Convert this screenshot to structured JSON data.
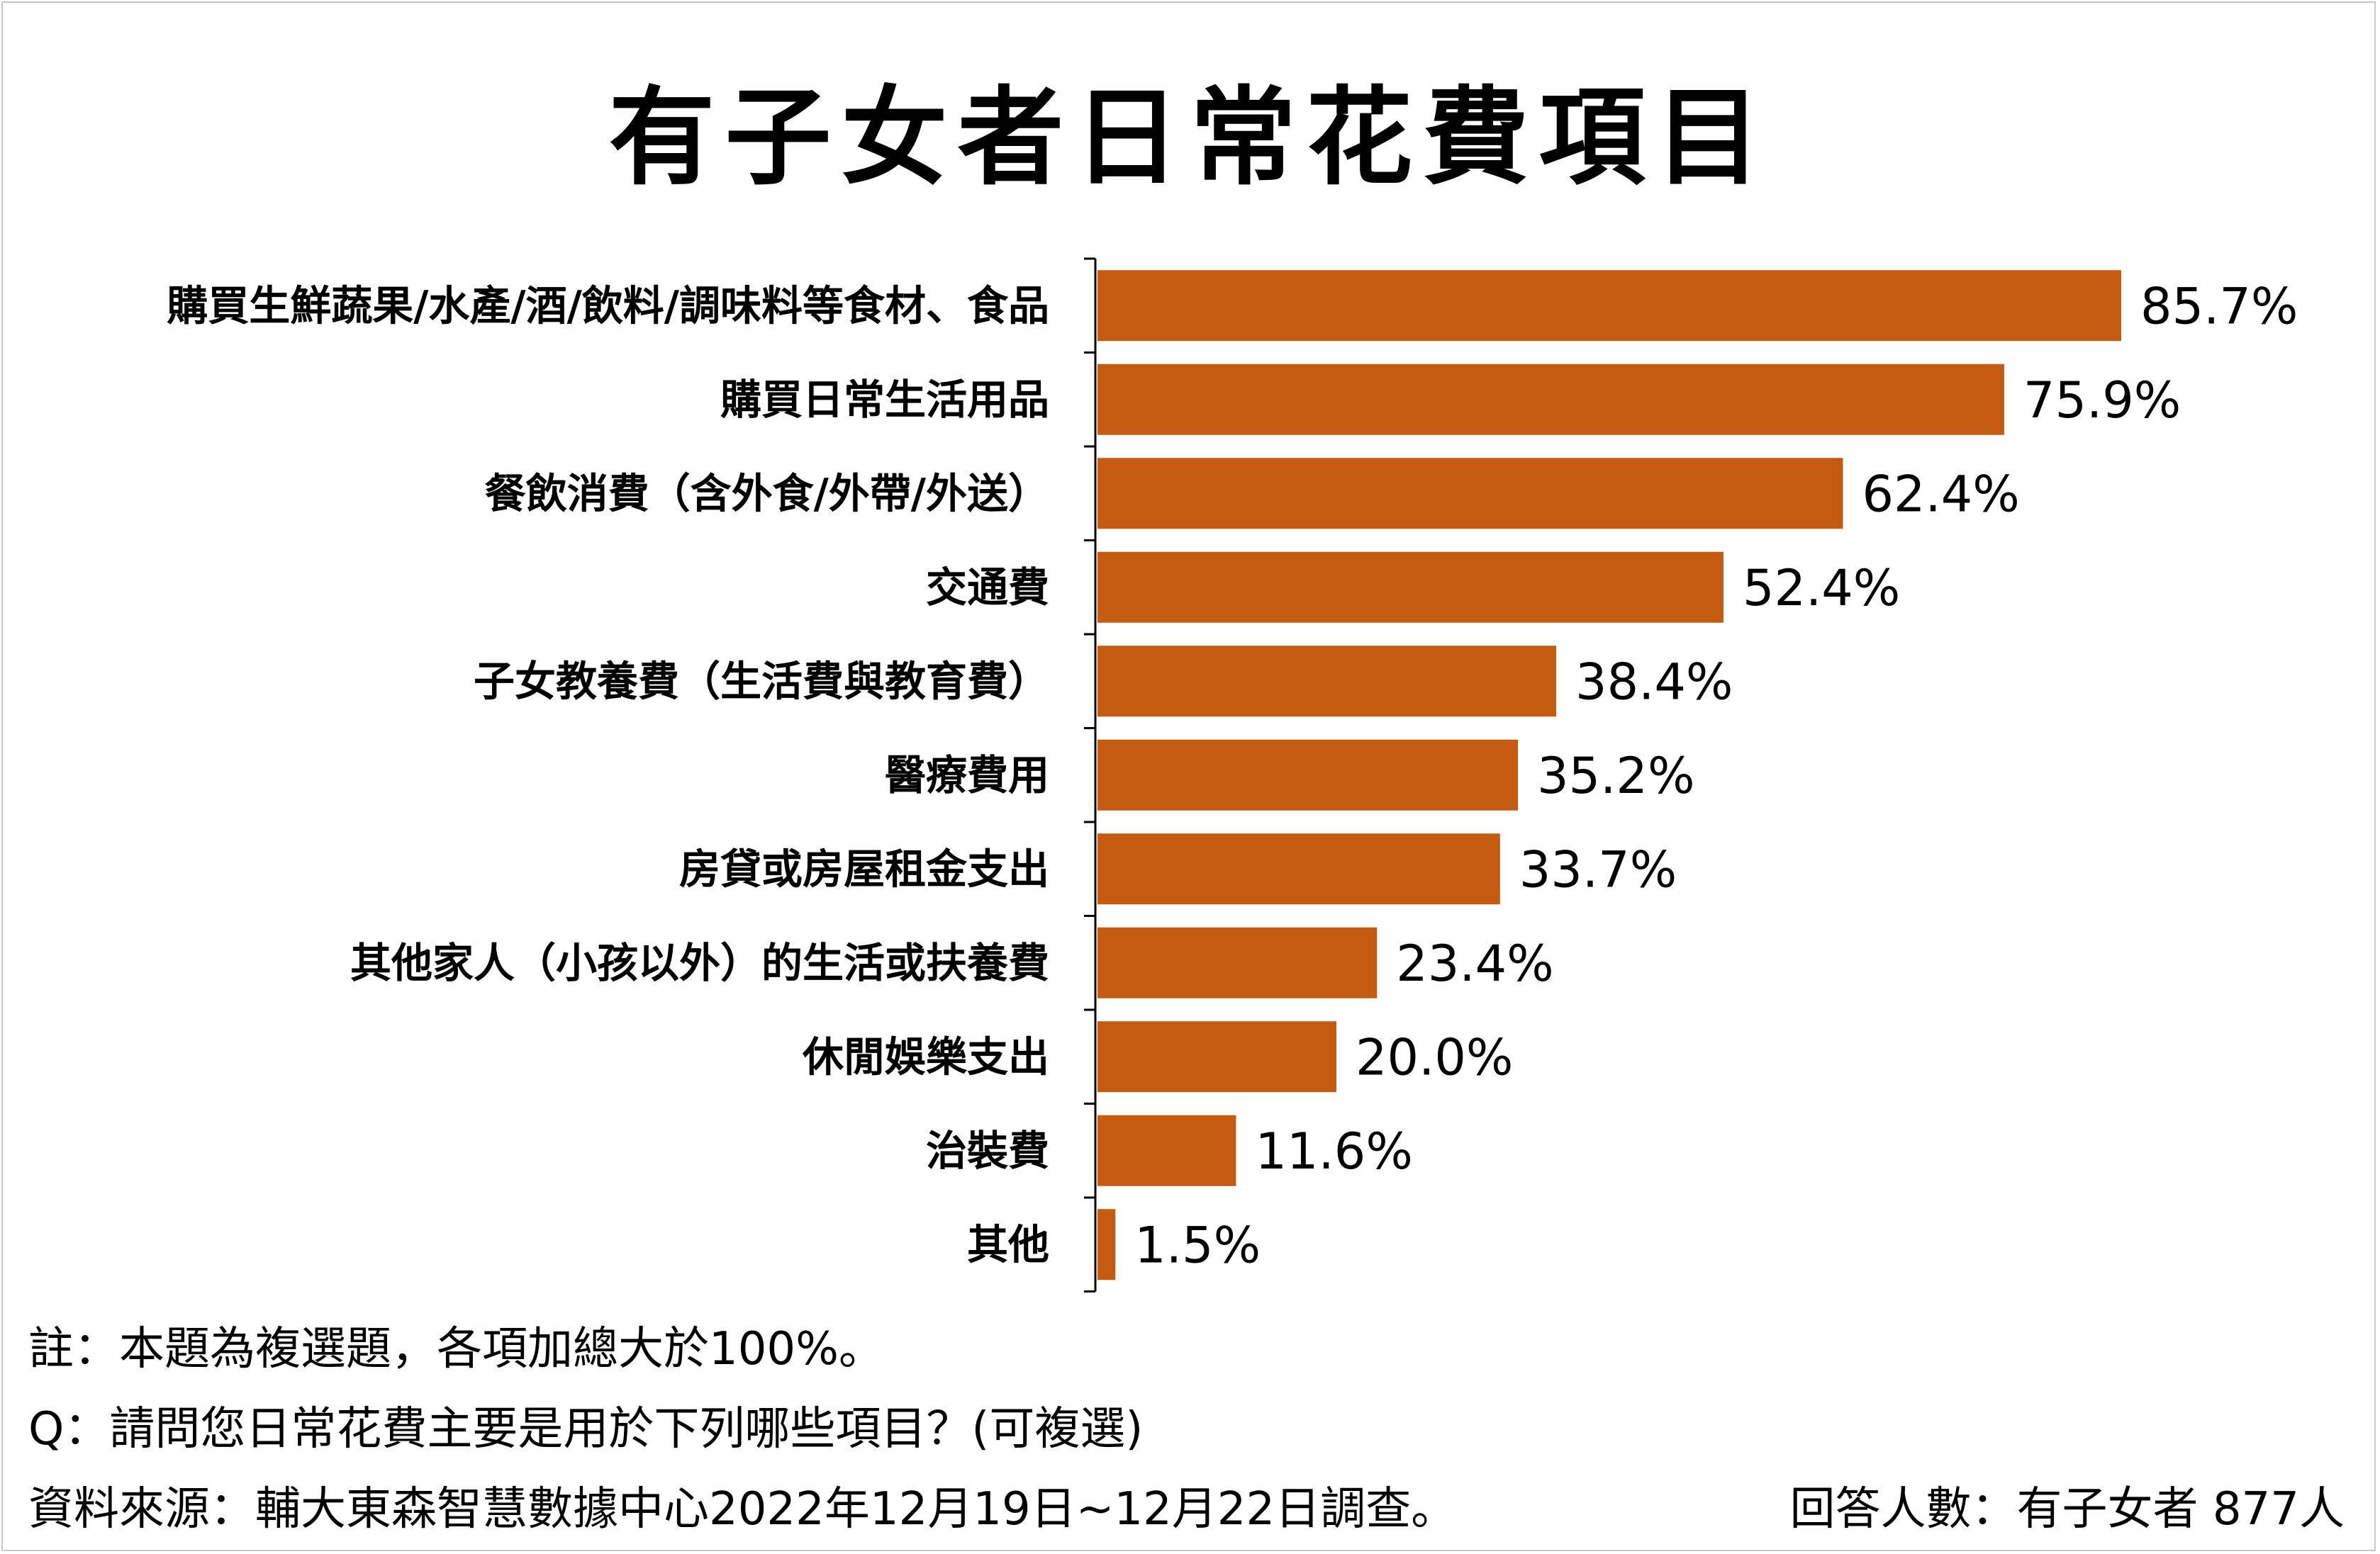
{
  "chart_data": {
    "type": "bar",
    "orientation": "horizontal",
    "title": "有子女者日常花費項目",
    "categories": [
      "購買生鮮蔬果/水產/酒/飲料/調味料等食材、食品",
      "購買日常生活用品",
      "餐飲消費（含外食/外帶/外送）",
      "交通費",
      "子女教養費（生活費與教育費）",
      "醫療費用",
      "房貸或房屋租金支出",
      "其他家人（小孩以外）的生活或扶養費",
      "休閒娛樂支出",
      "治裝費",
      "其他"
    ],
    "values": [
      85.7,
      75.9,
      62.4,
      52.4,
      38.4,
      35.2,
      33.7,
      23.4,
      20.0,
      11.6,
      1.5
    ],
    "value_labels": [
      "85.7%",
      "75.9%",
      "62.4%",
      "52.4%",
      "38.4%",
      "35.2%",
      "33.7%",
      "23.4%",
      "20.0%",
      "11.6%",
      "1.5%"
    ],
    "xlim": [
      0,
      100
    ],
    "grid": false,
    "bar_color": "#c55a11"
  },
  "footer": {
    "note": "註：本題為複選題，各項加總大於100%。",
    "question": "Q：請問您日常花費主要是用於下列哪些項目？(可複選)",
    "source": "資料來源：輔大東森智慧數據中心2022年12月19日~12月22日調查。",
    "respondents": "回答人數：有子女者 877人"
  }
}
